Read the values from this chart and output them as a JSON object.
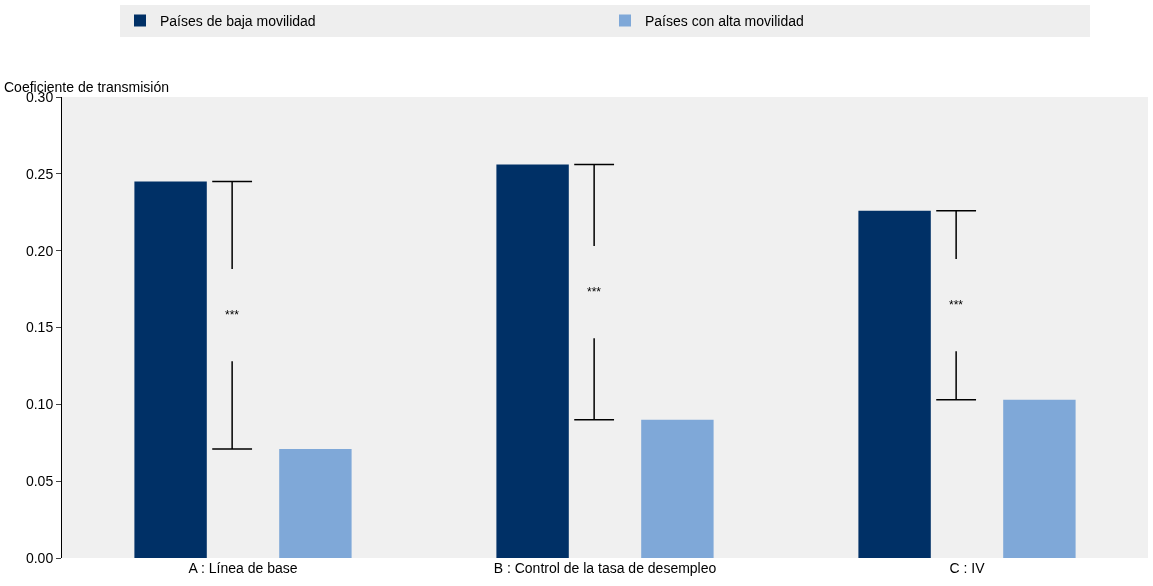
{
  "chart_data": {
    "type": "bar",
    "ylabel": "Coeficiente de transmisión",
    "categories": [
      "A : Línea de base",
      "B : Control de la tasa de desempleo",
      "C : IV"
    ],
    "series": [
      {
        "name": "Países de baja movilidad",
        "color": "#003066",
        "values": [
          0.245,
          0.256,
          0.226
        ]
      },
      {
        "name": "Países con alta movilidad",
        "color": "#7fa8d8",
        "values": [
          0.071,
          0.09,
          0.103
        ]
      }
    ],
    "ylim": [
      0,
      0.3
    ],
    "yticks": [
      {
        "value": 0,
        "label": "0.00"
      },
      {
        "value": 0.05,
        "label": "0.05"
      },
      {
        "value": 0.1,
        "label": "0.10"
      },
      {
        "value": 0.15,
        "label": "0.15"
      },
      {
        "value": 0.2,
        "label": "0.20"
      },
      {
        "value": 0.25,
        "label": "0.25"
      },
      {
        "value": 0.3,
        "label": "0.30"
      }
    ],
    "annotations": [
      "***",
      "***",
      "***"
    ],
    "grid": false,
    "legend": "top"
  }
}
